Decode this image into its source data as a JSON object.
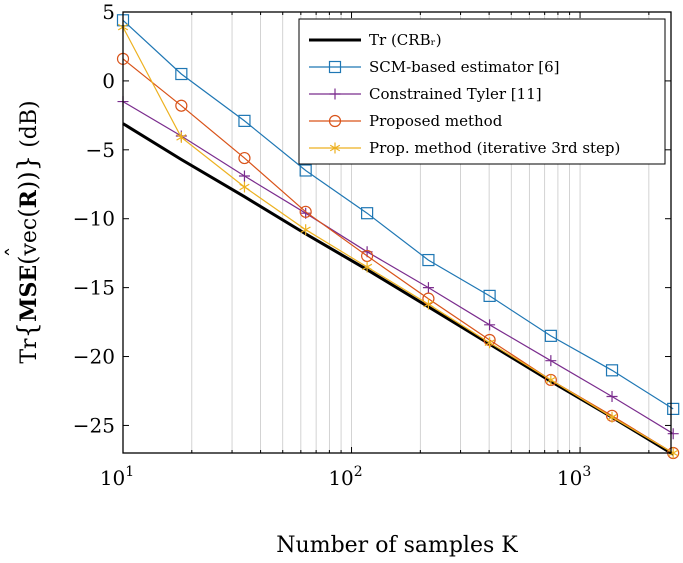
{
  "chart_data": {
    "type": "line",
    "xscale": "log",
    "xlim": [
      10,
      2500
    ],
    "ylim": [
      -27,
      5
    ],
    "yticks": [
      5,
      0,
      -5,
      -10,
      -15,
      -20,
      -25
    ],
    "ytick_labels": [
      "5",
      "0",
      "−5",
      "−10",
      "−15",
      "−20",
      "−25"
    ],
    "xticks": [
      10,
      100,
      1000
    ],
    "xtick_labels": [
      {
        "base": "10",
        "exp": "1"
      },
      {
        "base": "10",
        "exp": "2"
      },
      {
        "base": "10",
        "exp": "3"
      }
    ],
    "xlabel": "Number of samples K",
    "ylabel": "Tr{MSE(vec(R̂))} (dB)",
    "grid": "x-minor-and-major",
    "legend_position": "top-right",
    "x": [
      10,
      18,
      34,
      63,
      117,
      217,
      402,
      745,
      1380,
      2556
    ],
    "series": [
      {
        "name": "Tr (CRBᵣ)",
        "color": "#000000",
        "marker": "none",
        "line_width": 3,
        "values": [
          -3.1,
          -5.7,
          -8.4,
          -11.1,
          -13.7,
          -16.4,
          -19.1,
          -21.8,
          -24.4,
          -27.1
        ]
      },
      {
        "name": "SCM-based estimator [6]",
        "color": "#1f77b4",
        "marker": "square",
        "values": [
          4.4,
          0.5,
          -2.9,
          -6.5,
          -9.6,
          -13.0,
          -15.6,
          -18.5,
          -21.0,
          -23.8
        ]
      },
      {
        "name": "Constrained Tyler [11]",
        "color": "#7b2d8e",
        "marker": "plus",
        "values": [
          -1.5,
          -4.0,
          -6.9,
          -9.6,
          -12.4,
          -15.0,
          -17.7,
          -20.3,
          -22.9,
          -25.6
        ]
      },
      {
        "name": "Proposed method",
        "color": "#d95319",
        "marker": "circle",
        "values": [
          1.6,
          -1.8,
          -5.6,
          -9.5,
          -12.7,
          -15.8,
          -18.8,
          -21.7,
          -24.3,
          -27.0
        ]
      },
      {
        "name": "Prop. method (iterative 3rd step)",
        "color": "#edb120",
        "marker": "asterisk",
        "values": [
          3.9,
          -4.1,
          -7.7,
          -10.8,
          -13.5,
          -16.2,
          -19.0,
          -21.7,
          -24.4,
          -27.0
        ]
      }
    ]
  }
}
